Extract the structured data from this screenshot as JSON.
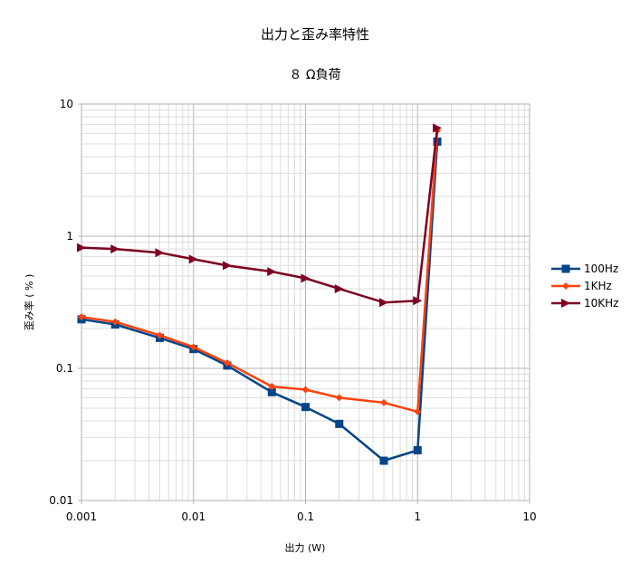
{
  "chart_data": {
    "type": "scatter",
    "title": "出力と歪み率特性",
    "subtitle": "８ Ω負荷",
    "xlabel": "出力 (W)",
    "ylabel": "歪み率 ( % )",
    "x_scale": "log",
    "y_scale": "log",
    "xlim": [
      0.001,
      10
    ],
    "ylim": [
      0.01,
      10
    ],
    "x_ticks": [
      "0.001",
      "0.01",
      "0.1",
      "1",
      "10"
    ],
    "y_ticks": [
      "0.01",
      "0.1",
      "1",
      "10"
    ],
    "grid": true,
    "legend_position": "right",
    "series": [
      {
        "name": "100Hz",
        "color": "#004586",
        "marker": "square",
        "x": [
          0.001,
          0.002,
          0.005,
          0.01,
          0.02,
          0.05,
          0.1,
          0.2,
          0.5,
          1,
          1.5
        ],
        "y": [
          0.235,
          0.215,
          0.17,
          0.14,
          0.105,
          0.066,
          0.051,
          0.038,
          0.02,
          0.024,
          5.2
        ]
      },
      {
        "name": "1KHz",
        "color": "#ff420e",
        "marker": "diamond",
        "x": [
          0.001,
          0.002,
          0.005,
          0.01,
          0.02,
          0.05,
          0.1,
          0.2,
          0.5,
          1,
          1.5
        ],
        "y": [
          0.245,
          0.225,
          0.178,
          0.145,
          0.11,
          0.073,
          0.069,
          0.06,
          0.055,
          0.047,
          6.3
        ]
      },
      {
        "name": "10KHz",
        "color": "#7e0021",
        "marker": "triangle-right",
        "x": [
          0.001,
          0.002,
          0.005,
          0.01,
          0.02,
          0.05,
          0.1,
          0.2,
          0.5,
          1,
          1.5
        ],
        "y": [
          0.82,
          0.8,
          0.75,
          0.67,
          0.6,
          0.54,
          0.48,
          0.4,
          0.315,
          0.325,
          6.6
        ]
      }
    ]
  }
}
